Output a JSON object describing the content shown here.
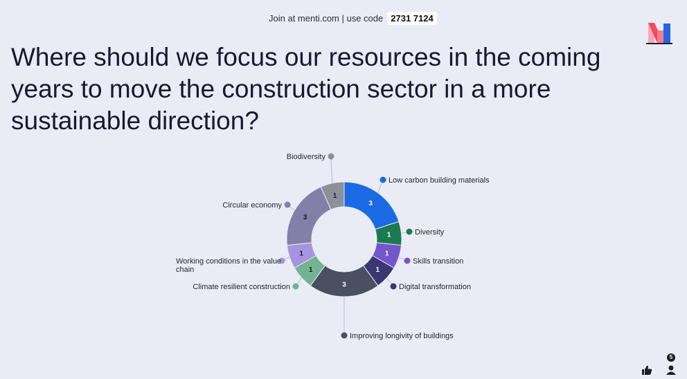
{
  "header": {
    "join_text": "Join at menti.com | use code",
    "code": "2731 7124"
  },
  "question": "Where should we focus our resources in the coming years to move the construction sector in a more sustainable direction?",
  "participants_count": "5",
  "chart_data": {
    "type": "pie",
    "donut": true,
    "categories": [
      "Low carbon building materials",
      "Diversity",
      "Skills transition",
      "Digital transformation",
      "Improving longivity of buildings",
      "Climate resilient construction",
      "Working conditions in the value chain",
      "Circular economy",
      "Biodiversity"
    ],
    "values": [
      3,
      1,
      1,
      1,
      3,
      1,
      1,
      3,
      1
    ],
    "colors": [
      "#1a6ae6",
      "#1b7a52",
      "#7355cc",
      "#3a3775",
      "#4a4f62",
      "#73b391",
      "#a694e0",
      "#847fa8",
      "#8e9099"
    ],
    "value_text_colors": [
      "#ffffff",
      "#ffffff",
      "#ffffff",
      "#ffffff",
      "#ffffff",
      "#1a1a1a",
      "#1a1a1a",
      "#1a1a1a",
      "#1a1a1a"
    ]
  }
}
